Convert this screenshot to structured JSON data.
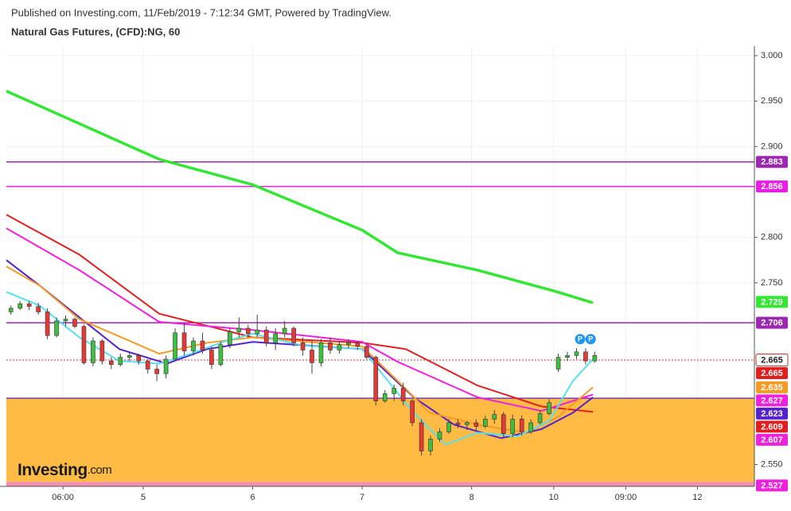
{
  "header": {
    "published": "Published on Investing.com, 11/Feb/2019 - 7:12:34 GMT, Powered by TradingView.",
    "title": "Natural Gas Futures, (CFD):NG, 60"
  },
  "watermark": {
    "brand": "Investing",
    "suffix": ".com"
  },
  "chart_data": {
    "type": "candlestick",
    "xlim": [
      -30,
      134
    ],
    "ylim": [
      2.526,
      3.0105
    ],
    "xticks": [
      {
        "value": -17.6,
        "label": "06:00"
      },
      {
        "value": 0,
        "label": "5"
      },
      {
        "value": 24,
        "label": "6"
      },
      {
        "value": 48,
        "label": "7"
      },
      {
        "value": 72,
        "label": "8"
      },
      {
        "value": 90,
        "label": "10"
      },
      {
        "value": 105.8,
        "label": "09:00"
      },
      {
        "value": 121.5,
        "label": "12"
      }
    ],
    "yticks": [
      {
        "value": 2.55,
        "label": "2.550"
      },
      {
        "value": 2.75,
        "label": "2.750"
      },
      {
        "value": 2.8,
        "label": "2.800"
      },
      {
        "value": 2.9,
        "label": "2.900"
      },
      {
        "value": 2.95,
        "label": "2.950"
      },
      {
        "value": 3,
        "label": "3.000"
      }
    ],
    "grid": true,
    "up_color": "#3fbf3f",
    "down_color": "#e53935",
    "candles": {
      "x": [
        -29,
        -27,
        -25,
        -23,
        -21,
        -19,
        -17,
        -15,
        -13,
        -11,
        -9,
        -7,
        -5,
        -3,
        -1,
        1,
        3,
        5,
        7,
        9,
        11,
        13,
        15,
        17,
        19,
        21,
        23,
        25,
        27,
        29,
        31,
        33,
        35,
        37,
        39,
        41,
        43,
        45,
        47,
        49,
        51,
        53,
        55,
        57,
        59,
        61,
        63,
        65,
        67,
        69,
        71,
        73,
        75,
        77,
        79,
        81,
        83,
        85,
        87,
        89,
        91,
        93,
        95,
        97,
        99
      ],
      "open": [
        2.718,
        2.722,
        2.727,
        2.724,
        2.718,
        2.692,
        2.708,
        2.71,
        2.702,
        2.662,
        2.686,
        2.664,
        2.66,
        2.668,
        2.67,
        2.664,
        2.655,
        2.65,
        2.666,
        2.695,
        2.675,
        2.686,
        2.676,
        2.66,
        2.682,
        2.696,
        2.7,
        2.694,
        2.698,
        2.684,
        2.694,
        2.7,
        2.684,
        2.676,
        2.662,
        2.684,
        2.676,
        2.682,
        2.684,
        2.68,
        2.668,
        2.62,
        2.628,
        2.634,
        2.62,
        2.596,
        2.565,
        2.578,
        2.586,
        2.596,
        2.594,
        2.596,
        2.592,
        2.6,
        2.605,
        2.584,
        2.6,
        2.586,
        2.596,
        2.606,
        2.655,
        2.668,
        2.67,
        2.674,
        2.664
      ],
      "high": [
        2.725,
        2.73,
        2.73,
        2.728,
        2.722,
        2.712,
        2.714,
        2.712,
        2.704,
        2.69,
        2.688,
        2.668,
        2.672,
        2.674,
        2.672,
        2.666,
        2.66,
        2.67,
        2.7,
        2.705,
        2.69,
        2.695,
        2.68,
        2.685,
        2.7,
        2.712,
        2.704,
        2.715,
        2.702,
        2.7,
        2.708,
        2.702,
        2.69,
        2.686,
        2.688,
        2.69,
        2.686,
        2.688,
        2.686,
        2.682,
        2.67,
        2.632,
        2.638,
        2.64,
        2.622,
        2.6,
        2.582,
        2.59,
        2.6,
        2.6,
        2.598,
        2.6,
        2.604,
        2.61,
        2.608,
        2.605,
        2.604,
        2.6,
        2.61,
        2.622,
        2.672,
        2.674,
        2.678,
        2.678,
        2.674
      ],
      "low": [
        2.715,
        2.72,
        2.72,
        2.715,
        2.688,
        2.69,
        2.702,
        2.7,
        2.66,
        2.658,
        2.66,
        2.655,
        2.658,
        2.664,
        2.66,
        2.65,
        2.642,
        2.645,
        2.664,
        2.67,
        2.67,
        2.672,
        2.655,
        2.658,
        2.678,
        2.69,
        2.69,
        2.69,
        2.68,
        2.676,
        2.69,
        2.68,
        2.67,
        2.65,
        2.658,
        2.672,
        2.672,
        2.678,
        2.676,
        2.666,
        2.615,
        2.618,
        2.62,
        2.615,
        2.592,
        2.56,
        2.56,
        2.575,
        2.584,
        2.59,
        2.588,
        2.588,
        2.59,
        2.595,
        2.58,
        2.58,
        2.582,
        2.584,
        2.594,
        2.604,
        2.652,
        2.664,
        2.666,
        2.66,
        2.662
      ],
      "close": [
        2.722,
        2.727,
        2.724,
        2.718,
        2.692,
        2.708,
        2.71,
        2.702,
        2.662,
        2.686,
        2.664,
        2.66,
        2.668,
        2.67,
        2.664,
        2.655,
        2.65,
        2.666,
        2.695,
        2.675,
        2.686,
        2.676,
        2.66,
        2.682,
        2.696,
        2.7,
        2.694,
        2.698,
        2.684,
        2.694,
        2.7,
        2.684,
        2.676,
        2.662,
        2.684,
        2.676,
        2.682,
        2.684,
        2.68,
        2.668,
        2.62,
        2.628,
        2.634,
        2.62,
        2.596,
        2.565,
        2.578,
        2.586,
        2.596,
        2.594,
        2.596,
        2.592,
        2.6,
        2.605,
        2.584,
        2.6,
        2.586,
        2.596,
        2.606,
        2.618,
        2.668,
        2.67,
        2.674,
        2.664,
        2.67
      ]
    },
    "series": [
      {
        "color": "#33e633",
        "x": [
          -30,
          3.5,
          24,
          48,
          55.8,
          73.3,
          90.8,
          98.6
        ],
        "values": [
          2.961,
          2.886,
          2.858,
          2.808,
          2.783,
          2.764,
          2.74,
          2.728
        ]
      },
      {
        "color": "#e02020",
        "x": [
          -30,
          -14,
          3.5,
          24,
          48,
          57.6,
          73.3,
          87.3,
          98.6
        ],
        "values": [
          2.825,
          2.781,
          2.716,
          2.69,
          2.684,
          2.677,
          2.637,
          2.614,
          2.608
        ]
      },
      {
        "color": "#ee22dd",
        "x": [
          -30,
          -14,
          3.5,
          24,
          48,
          55.8,
          73.3,
          87.3,
          98.6
        ],
        "values": [
          2.81,
          2.764,
          2.707,
          2.698,
          2.685,
          2.663,
          2.624,
          2.609,
          2.627
        ]
      },
      {
        "color": "#5522cc",
        "x": [
          -30,
          -22.7,
          -14,
          -5.2,
          5.2,
          14,
          24,
          48,
          59.3,
          68.1,
          78.5,
          87.3,
          94.2,
          98.6
        ],
        "values": [
          2.775,
          2.747,
          2.712,
          2.677,
          2.661,
          2.677,
          2.685,
          2.677,
          2.624,
          2.594,
          2.579,
          2.589,
          2.607,
          2.624
        ]
      },
      {
        "color": "#f59a23",
        "x": [
          -30,
          -22.7,
          -14,
          3.5,
          14,
          24,
          48,
          55.8,
          62.8,
          73.3,
          83.8,
          90.8,
          98.6
        ],
        "values": [
          2.768,
          2.747,
          2.71,
          2.672,
          2.684,
          2.69,
          2.68,
          2.642,
          2.607,
          2.594,
          2.585,
          2.602,
          2.635
        ]
      },
      {
        "color": "#55e0f0",
        "x": [
          -30,
          -22.7,
          -14,
          -5.2,
          3.5,
          10.5,
          17.5,
          24,
          34.9,
          48,
          52.4,
          59.3,
          66.3,
          73.3,
          82,
          89,
          94.2,
          98.6
        ],
        "values": [
          2.74,
          2.725,
          2.69,
          2.664,
          2.661,
          2.672,
          2.685,
          2.694,
          2.681,
          2.677,
          2.65,
          2.607,
          2.572,
          2.585,
          2.581,
          2.598,
          2.642,
          2.666
        ]
      }
    ],
    "zones": [
      {
        "from": 2.531,
        "to": 2.623,
        "color": "#ffbb44"
      },
      {
        "from": 2.526,
        "to": 2.531,
        "color": "#f48fb1"
      }
    ],
    "levels": [
      {
        "value": 2.883,
        "color": "#9c27b0"
      },
      {
        "value": 2.856,
        "color": "#e91ee6"
      },
      {
        "value": 2.706,
        "color": "#9c27b0"
      },
      {
        "value": 2.623,
        "color": "#7b3fa0"
      },
      {
        "value": 2.665,
        "color": "#d32f2f",
        "dashed": true
      }
    ],
    "price_labels": [
      {
        "value": 2.883,
        "color": "#9c27b0"
      },
      {
        "value": 2.856,
        "color": "#e91ee6"
      },
      {
        "value": 2.729,
        "color": "#33e633"
      },
      {
        "value": 2.706,
        "color": "#9c27b0"
      },
      {
        "value": 2.665,
        "color": "#ffffff"
      },
      {
        "value": 2.665,
        "color": "#e02020"
      },
      {
        "value": 2.635,
        "color": "#f59a23"
      },
      {
        "value": 2.627,
        "color": "#ee22dd"
      },
      {
        "value": 2.623,
        "color": "#5522cc"
      },
      {
        "value": 2.609,
        "color": "#e02020"
      },
      {
        "value": 2.607,
        "color": "#ee22dd"
      },
      {
        "value": 2.527,
        "color": "#ee22dd"
      }
    ],
    "annotations": [
      {
        "text": "P",
        "x": 95.8,
        "y": 2.688
      },
      {
        "text": "P",
        "x": 98.1,
        "y": 2.688
      }
    ]
  }
}
